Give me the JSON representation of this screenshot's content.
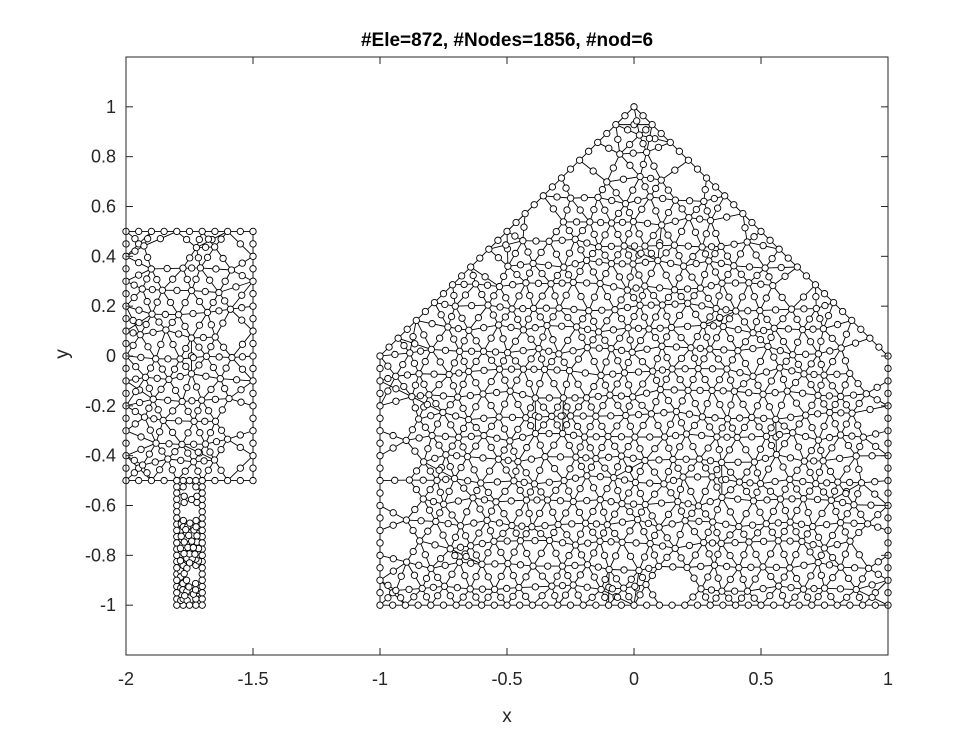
{
  "chart_data": {
    "type": "mesh",
    "title": "#Ele=872, #Nodes=1856, #nod=6",
    "xlabel": "x",
    "ylabel": "y",
    "xlim": [
      -2,
      1
    ],
    "ylim": [
      -1.2,
      1.2
    ],
    "xticks": [
      -2,
      -1.5,
      -1,
      -0.5,
      0,
      0.5,
      1
    ],
    "xtick_labels": [
      "-2",
      "-1.5",
      "-1",
      "-0.5",
      "0",
      "0.5",
      "1"
    ],
    "yticks": [
      -1,
      -0.8,
      -0.6,
      -0.4,
      -0.2,
      0,
      0.2,
      0.4,
      0.6,
      0.8,
      1
    ],
    "ytick_labels": [
      "-1",
      "-0.8",
      "-0.6",
      "-0.4",
      "-0.2",
      "0",
      "0.2",
      "0.4",
      "0.6",
      "0.8",
      "1"
    ],
    "grid": false,
    "node_marker": "circle",
    "line_color": "#000000",
    "regions": [
      {
        "shape": "rectangle",
        "boundary": [
          [
            -2,
            -0.5
          ],
          [
            -1.5,
            -0.5
          ],
          [
            -1.5,
            0.5
          ],
          [
            -2,
            0.5
          ]
        ],
        "mesh_spacing": 0.05
      },
      {
        "shape": "rectangle",
        "boundary": [
          [
            -1.8,
            -1
          ],
          [
            -1.7,
            -1
          ],
          [
            -1.7,
            -0.5
          ],
          [
            -1.8,
            -0.5
          ]
        ],
        "mesh_spacing": 0.025
      },
      {
        "shape": "pentagon",
        "boundary": [
          [
            -1,
            -1
          ],
          [
            1,
            -1
          ],
          [
            1,
            0
          ],
          [
            0,
            1
          ],
          [
            -1,
            0
          ]
        ],
        "mesh_spacing": 0.05
      }
    ]
  }
}
